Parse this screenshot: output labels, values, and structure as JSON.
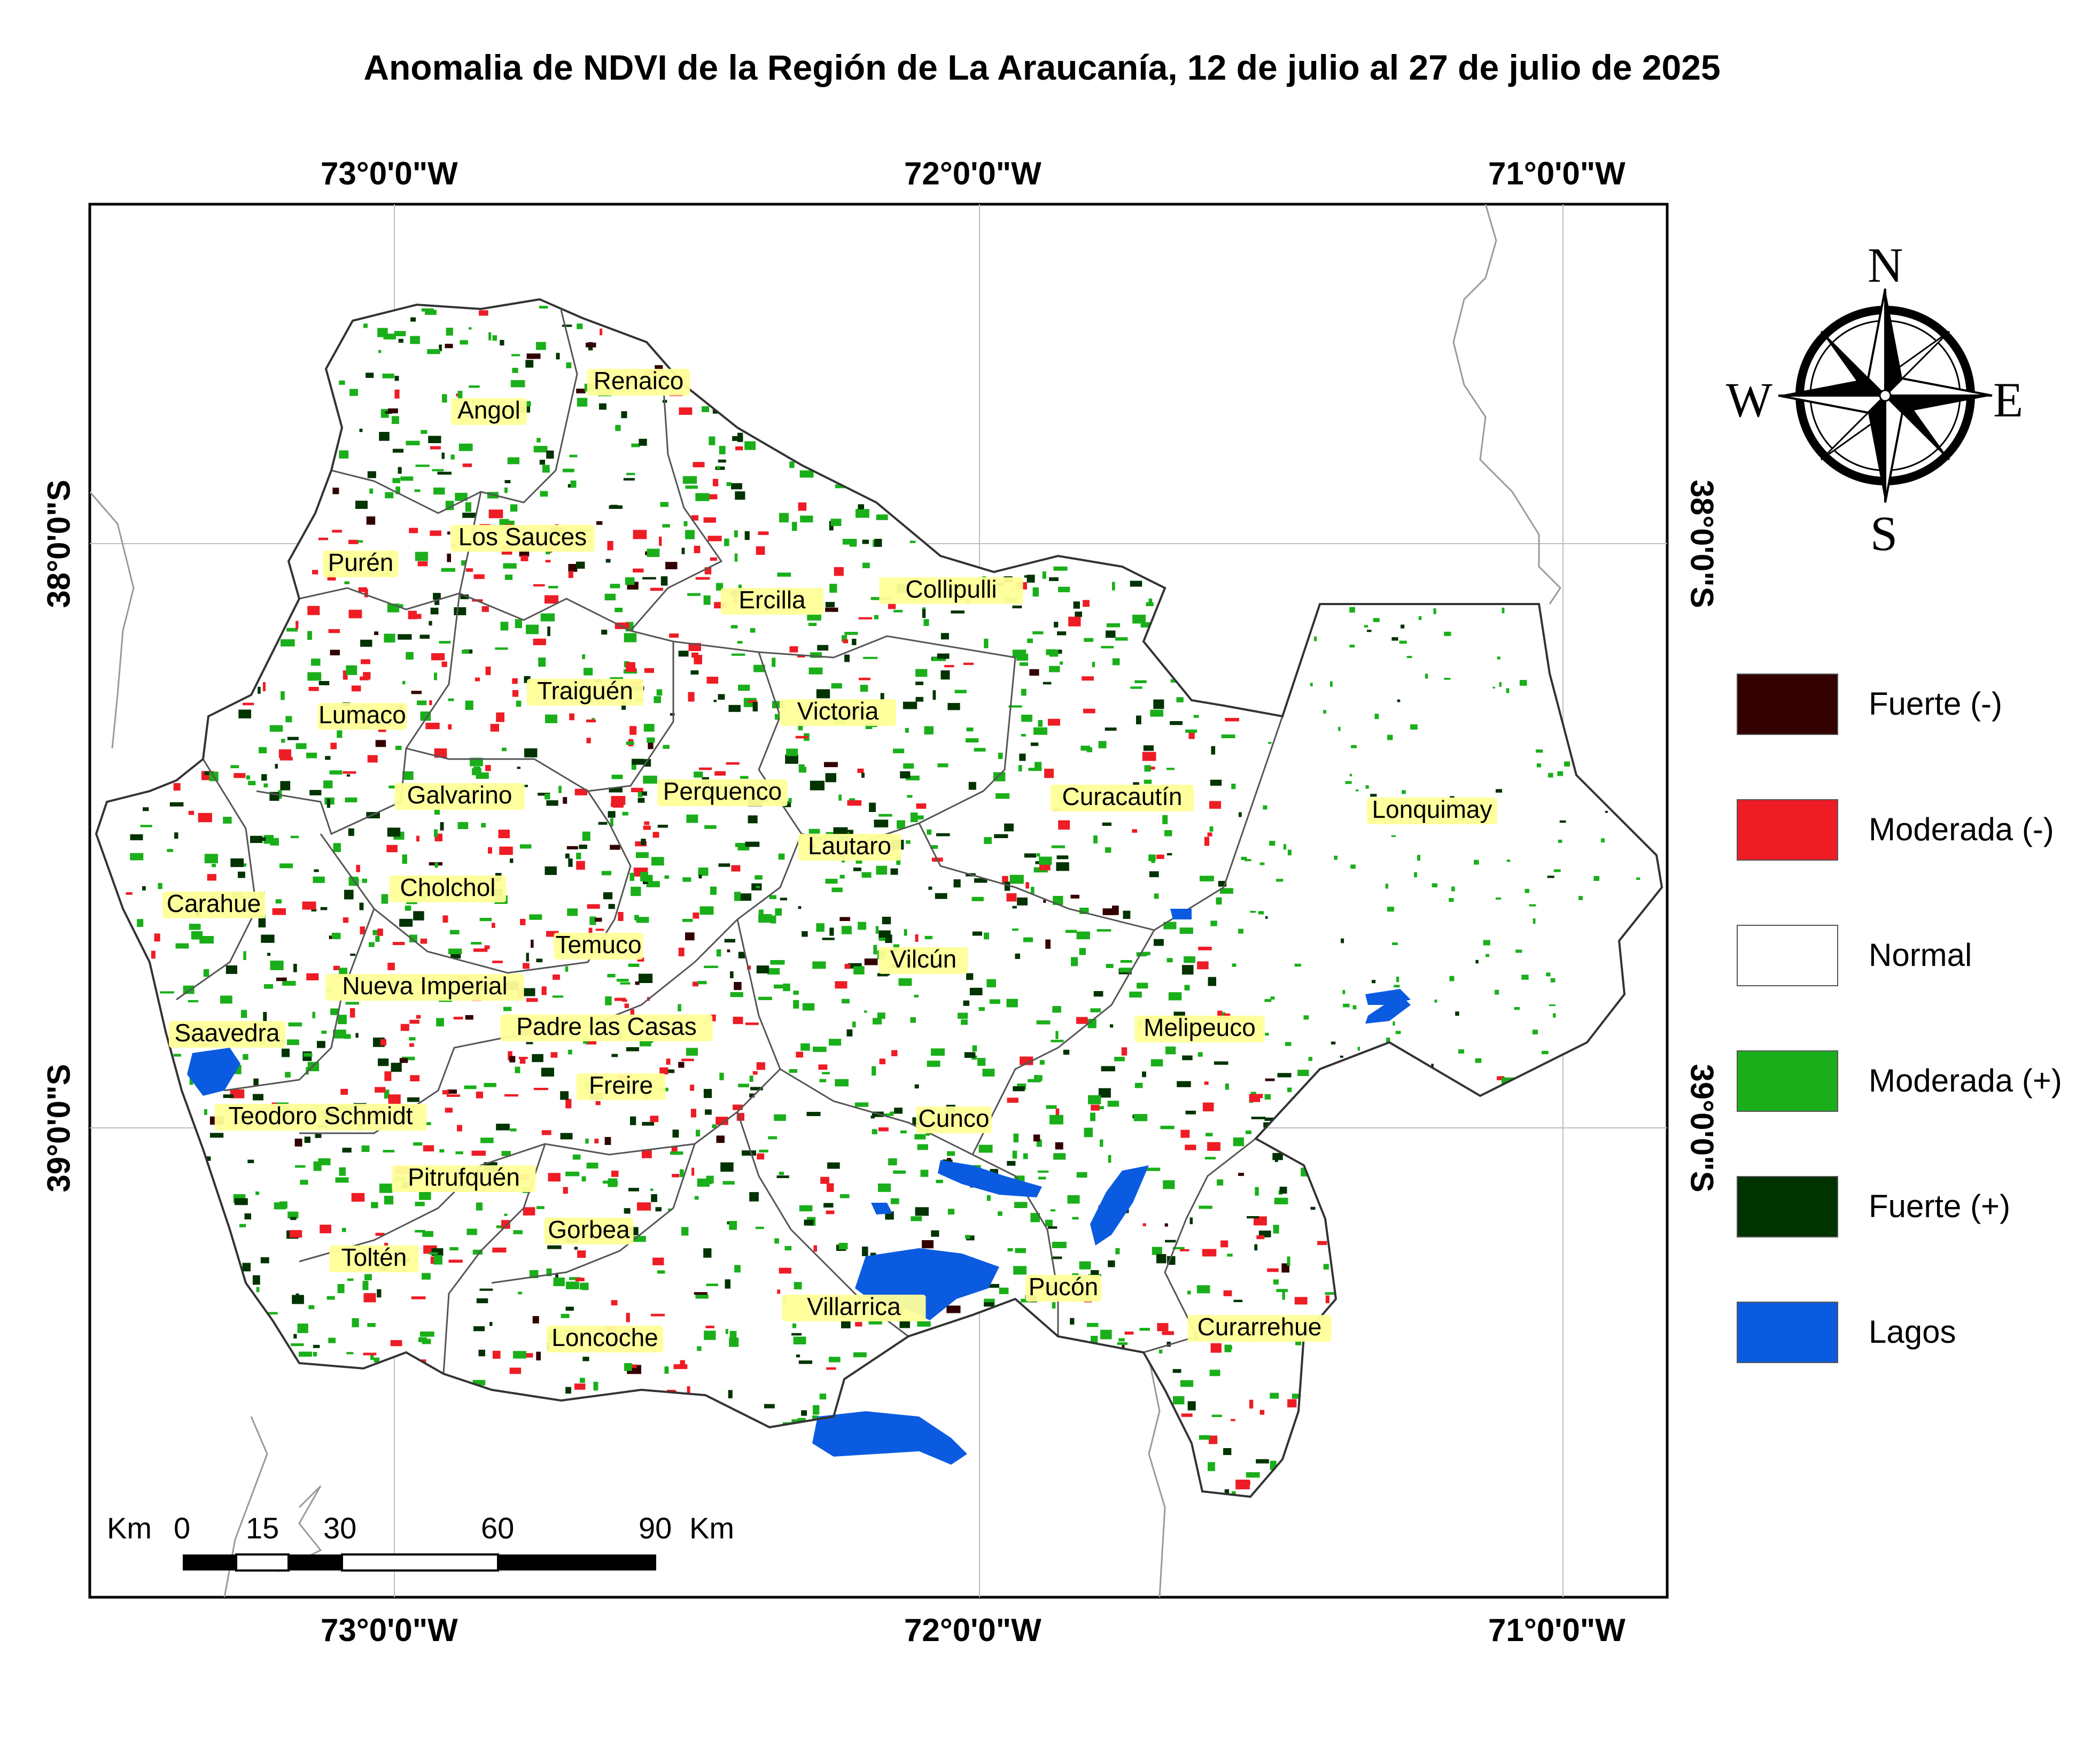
{
  "title": "Anomalia de NDVI de la Región de La Araucanía, 12 de julio al 27 de julio de 2025",
  "graticule": {
    "longitudes": [
      {
        "label": "73°0'0\"W"
      },
      {
        "label": "72°0'0\"W"
      },
      {
        "label": "71°0'0\"W"
      }
    ],
    "latitudes": [
      {
        "label": "38°0'0\"S"
      },
      {
        "label": "39°0'0\"S"
      }
    ]
  },
  "compass": {
    "north": "N",
    "south": "S",
    "east": "E",
    "west": "W"
  },
  "legend": [
    {
      "label": "Fuerte (-)",
      "color": "#330000"
    },
    {
      "label": "Moderada (-)",
      "color": "#ee1c25"
    },
    {
      "label": "Normal",
      "color": "#ffffff"
    },
    {
      "label": "Moderada (+)",
      "color": "#1aaf1a"
    },
    {
      "label": "Fuerte (+)",
      "color": "#003300"
    },
    {
      "label": "Lagos",
      "color": "#0a5be0"
    }
  ],
  "scale_bar": {
    "unit_left": "Km",
    "unit_right": "Km",
    "ticks": [
      "0",
      "15",
      "30",
      "60",
      "90"
    ]
  },
  "communes": [
    "Renaico",
    "Angol",
    "Los Sauces",
    "Purén",
    "Collipulli",
    "Ercilla",
    "Traiguén",
    "Victoria",
    "Lumaco",
    "Galvarino",
    "Perquenco",
    "Curacautín",
    "Lonquimay",
    "Lautaro",
    "Cholchol",
    "Carahue",
    "Temuco",
    "Vilcún",
    "Nueva Imperial",
    "Saavedra",
    "Padre las Casas",
    "Melipeuco",
    "Freire",
    "Teodoro Schmidt",
    "Cunco",
    "Pitrufquén",
    "Gorbea",
    "Toltén",
    "Pucón",
    "Villarrica",
    "Curarrehue",
    "Loncoche"
  ]
}
